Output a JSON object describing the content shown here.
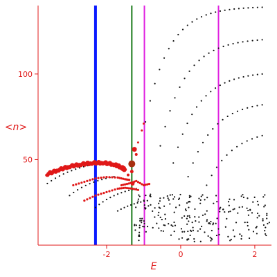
{
  "chart_data": {
    "type": "scatter",
    "xlabel": "E",
    "ylabel": "<n>",
    "xlim": [
      -3.85,
      2.45
    ],
    "ylim": [
      0,
      140
    ],
    "grid": false,
    "x_ticks": [
      {
        "v": -2,
        "label": "-2"
      },
      {
        "v": 0,
        "label": "0"
      },
      {
        "v": 2,
        "label": "2"
      }
    ],
    "y_ticks": [
      {
        "v": 50,
        "label": "50"
      },
      {
        "v": 100,
        "label": "100"
      }
    ],
    "colors": {
      "axis": "#e01818",
      "highlight": "#e01818",
      "points": "#111111"
    },
    "vertical_lines": [
      {
        "x": -2.3,
        "color": "#0a1aff",
        "width": 4
      },
      {
        "x": -1.32,
        "color": "#1a7a1a",
        "width": 2
      },
      {
        "x": -0.98,
        "color": "#e020e0",
        "width": 2
      },
      {
        "x": 1.02,
        "color": "#e020e0",
        "width": 2
      }
    ],
    "black_curves": [
      {
        "x0": -0.95,
        "x1": 2.2,
        "y0": 72,
        "k": 1.6,
        "ym": 139,
        "n": 26
      },
      {
        "x0": -0.55,
        "x1": 2.2,
        "y0": 58,
        "k": 1.5,
        "ym": 120,
        "n": 22
      },
      {
        "x0": -0.2,
        "x1": 2.2,
        "y0": 48,
        "k": 1.5,
        "ym": 100,
        "n": 20
      },
      {
        "x0": 0.2,
        "x1": 2.2,
        "y0": 40,
        "k": 1.5,
        "ym": 82,
        "n": 16
      },
      {
        "x0": 0.7,
        "x1": 2.2,
        "y0": 35,
        "k": 1.4,
        "ym": 64,
        "n": 12
      },
      {
        "x0": -3.6,
        "x1": -2.4,
        "y0": 36,
        "k": 1.0,
        "ym": 47,
        "n": 12
      },
      {
        "x0": -3.0,
        "x1": -1.8,
        "y0": 29,
        "k": 1.2,
        "ym": 40,
        "n": 12
      },
      {
        "x0": -2.3,
        "x1": -1.2,
        "y0": 22,
        "k": 1.3,
        "ym": 33,
        "n": 12
      },
      {
        "x0": -1.7,
        "x1": -0.9,
        "y0": 20,
        "k": 1.4,
        "ym": 26,
        "n": 10
      }
    ],
    "black_scatter_region": {
      "xmin": -1.25,
      "xmax": 2.4,
      "ymin": 2,
      "ymax": 30,
      "count": 230,
      "seed": 17
    },
    "red_band": {
      "x": [
        -3.6,
        -3.3,
        -3.0,
        -2.7,
        -2.4,
        -2.1,
        -1.8,
        -1.6,
        -1.5
      ],
      "y": [
        41.5,
        44,
        46,
        47.2,
        48,
        48.2,
        47.2,
        45.5,
        44
      ]
    },
    "red_points": [
      {
        "x": -1.32,
        "y": 47.5,
        "s": 5
      },
      {
        "x": -1.25,
        "y": 56,
        "s": 3.5
      },
      {
        "x": -1.3,
        "y": 36,
        "s": 3
      },
      {
        "x": -1.32,
        "y": 43,
        "s": 2.5
      },
      {
        "x": -1.42,
        "y": 41,
        "s": 2
      },
      {
        "x": -1.2,
        "y": 53,
        "s": 2
      },
      {
        "x": -1.05,
        "y": 67,
        "s": 1.5
      },
      {
        "x": -1.0,
        "y": 71,
        "s": 1.5
      },
      {
        "x": -1.15,
        "y": 60,
        "s": 1.5
      }
    ],
    "red_tails": [
      {
        "x": [
          -2.9,
          -2.6,
          -2.3,
          -2.0,
          -1.7,
          -1.5,
          -1.35
        ],
        "y": [
          35,
          37,
          39,
          39.8,
          39.5,
          38.5,
          38
        ]
      },
      {
        "x": [
          -2.6,
          -2.3,
          -2.0,
          -1.7,
          -1.5,
          -1.3,
          -1.1
        ],
        "y": [
          26,
          29,
          31,
          33,
          33.5,
          33,
          32
        ]
      },
      {
        "x": [
          -1.6,
          -1.4,
          -1.2,
          -1.0,
          -0.8
        ],
        "y": [
          35,
          36,
          37.5,
          35,
          36
        ]
      }
    ]
  }
}
